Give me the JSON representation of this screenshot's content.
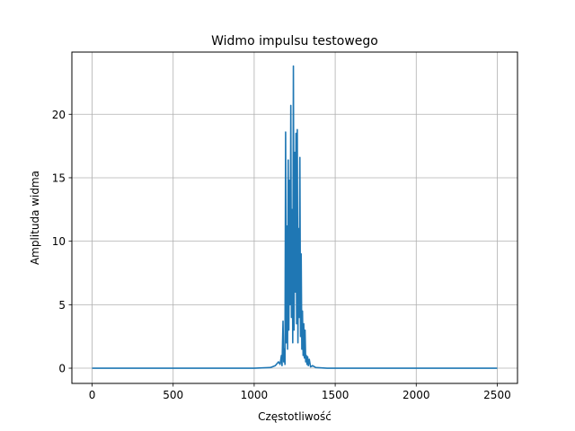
{
  "chart_data": {
    "type": "line",
    "title": "Widmo impulsu testowego",
    "xlabel": "Częstotliwość",
    "ylabel": "Amplituda widma",
    "xlim": [
      -125,
      2625
    ],
    "ylim": [
      -1.2,
      24.9
    ],
    "xticks": [
      0,
      500,
      1000,
      1500,
      2000,
      2500
    ],
    "yticks": [
      0,
      5,
      10,
      15,
      20
    ],
    "grid": true,
    "series": [
      {
        "color": "#1f77b4",
        "points": [
          [
            0,
            0
          ],
          [
            1000,
            0
          ],
          [
            1100,
            0.05
          ],
          [
            1130,
            0.2
          ],
          [
            1150,
            0.5
          ],
          [
            1160,
            0.3
          ],
          [
            1168,
            1.0
          ],
          [
            1172,
            0.2
          ],
          [
            1178,
            3.7
          ],
          [
            1182,
            0.5
          ],
          [
            1186,
            1.5
          ],
          [
            1190,
            0.3
          ],
          [
            1194,
            18.6
          ],
          [
            1198,
            2.0
          ],
          [
            1202,
            11.2
          ],
          [
            1206,
            1.5
          ],
          [
            1210,
            16.4
          ],
          [
            1214,
            3.0
          ],
          [
            1218,
            14.8
          ],
          [
            1222,
            5.0
          ],
          [
            1226,
            20.7
          ],
          [
            1230,
            4.0
          ],
          [
            1234,
            12.5
          ],
          [
            1238,
            2.0
          ],
          [
            1242,
            23.8
          ],
          [
            1246,
            3.0
          ],
          [
            1250,
            17.0
          ],
          [
            1254,
            6.0
          ],
          [
            1258,
            18.5
          ],
          [
            1262,
            3.5
          ],
          [
            1266,
            18.8
          ],
          [
            1270,
            2.0
          ],
          [
            1274,
            11.0
          ],
          [
            1278,
            4.0
          ],
          [
            1282,
            16.6
          ],
          [
            1286,
            2.5
          ],
          [
            1290,
            9.0
          ],
          [
            1294,
            1.5
          ],
          [
            1298,
            4.5
          ],
          [
            1302,
            1.0
          ],
          [
            1306,
            3.5
          ],
          [
            1310,
            0.8
          ],
          [
            1314,
            3.0
          ],
          [
            1318,
            0.5
          ],
          [
            1322,
            1.0
          ],
          [
            1326,
            0.3
          ],
          [
            1330,
            0.9
          ],
          [
            1334,
            0.2
          ],
          [
            1340,
            0.7
          ],
          [
            1348,
            0.1
          ],
          [
            1360,
            0.2
          ],
          [
            1380,
            0.05
          ],
          [
            1450,
            0
          ],
          [
            2500,
            0
          ]
        ]
      }
    ]
  }
}
